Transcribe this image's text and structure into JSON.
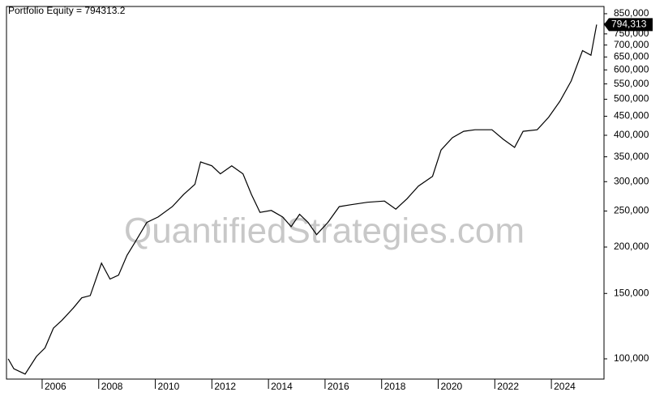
{
  "chart_data": {
    "type": "line",
    "title": "Portfolio Equity = 794313.2",
    "watermark": "QuantifiedStrategies.com",
    "color": "#000000",
    "log_y": true,
    "x": [
      2004.8,
      2005.0,
      2005.4,
      2005.8,
      2006.1,
      2006.4,
      2006.7,
      2007.1,
      2007.4,
      2007.7,
      2008.1,
      2008.4,
      2008.7,
      2009.0,
      2009.3,
      2009.7,
      2010.1,
      2010.6,
      2011.0,
      2011.4,
      2011.6,
      2012.0,
      2012.3,
      2012.7,
      2013.1,
      2013.4,
      2013.7,
      2014.1,
      2014.5,
      2014.8,
      2015.1,
      2015.4,
      2015.7,
      2016.1,
      2016.5,
      2016.9,
      2017.5,
      2018.1,
      2018.5,
      2018.9,
      2019.3,
      2019.8,
      2020.1,
      2020.5,
      2020.9,
      2021.3,
      2021.9,
      2022.3,
      2022.7,
      2023.0,
      2023.5,
      2023.9,
      2024.3,
      2024.7,
      2025.1,
      2025.4,
      2025.6
    ],
    "values": [
      100000,
      94000,
      91000,
      101500,
      107000,
      121000,
      127000,
      137000,
      146000,
      148000,
      181000,
      164000,
      168000,
      190000,
      207000,
      233000,
      241000,
      257000,
      277000,
      295000,
      339000,
      331000,
      315000,
      331000,
      315000,
      277000,
      248000,
      251000,
      241000,
      227000,
      245000,
      233000,
      216000,
      233000,
      257000,
      260000,
      264000,
      266000,
      253000,
      270000,
      292000,
      310000,
      365000,
      394000,
      410000,
      414000,
      414000,
      390000,
      371000,
      410000,
      414000,
      447000,
      494000,
      560000,
      676000,
      657000,
      794313.2
    ],
    "last_value": {
      "value": 794313.2,
      "label": "794,313"
    },
    "xlim": [
      2004.74,
      2025.86
    ],
    "xticks": [
      2006,
      2008,
      2010,
      2012,
      2014,
      2016,
      2018,
      2020,
      2022,
      2024
    ],
    "ylim": [
      88200,
      889000
    ],
    "yticks": [
      {
        "value": 100000,
        "label": "100,000"
      },
      {
        "value": 150000,
        "label": "150,000"
      },
      {
        "value": 200000,
        "label": "200,000"
      },
      {
        "value": 250000,
        "label": "250,000"
      },
      {
        "value": 300000,
        "label": "300,000"
      },
      {
        "value": 350000,
        "label": "350,000"
      },
      {
        "value": 400000,
        "label": "400,000"
      },
      {
        "value": 450000,
        "label": "450,000"
      },
      {
        "value": 500000,
        "label": "500,000"
      },
      {
        "value": 550000,
        "label": "550,000"
      },
      {
        "value": 600000,
        "label": "600,000"
      },
      {
        "value": 650000,
        "label": "650,000"
      },
      {
        "value": 700000,
        "label": "700,000"
      },
      {
        "value": 750000,
        "label": "750,000"
      },
      {
        "value": 800000,
        "label": "800,000"
      },
      {
        "value": 850000,
        "label": "850,000"
      }
    ]
  }
}
